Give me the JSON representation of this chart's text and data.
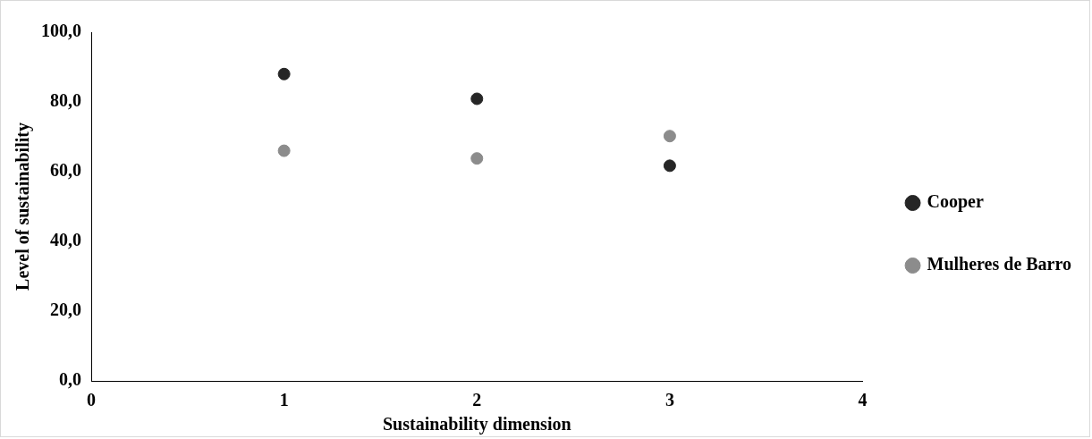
{
  "chart_data": {
    "type": "scatter",
    "xlabel": "Sustainability dimension",
    "ylabel": "Level of sustainability",
    "x": [
      1,
      2,
      3
    ],
    "series": [
      {
        "name": "Cooper",
        "color": "#262626",
        "values": [
          88.0,
          80.9,
          61.7
        ]
      },
      {
        "name": "Mulheres de Barro",
        "color": "#8c8c8c",
        "values": [
          66.0,
          63.8,
          70.2
        ]
      }
    ],
    "xlim": [
      0,
      4
    ],
    "xticks": [
      0,
      1,
      2,
      3,
      4
    ],
    "ylim": [
      0,
      100
    ],
    "yticks": [
      {
        "value": 0,
        "label": "0,0"
      },
      {
        "value": 20,
        "label": "20,0"
      },
      {
        "value": 40,
        "label": "40,0"
      },
      {
        "value": 60,
        "label": "60,0"
      },
      {
        "value": 80,
        "label": "80,0"
      },
      {
        "value": 100,
        "label": "100,0"
      }
    ],
    "grid": false,
    "legend": "right",
    "marker": "circle"
  }
}
